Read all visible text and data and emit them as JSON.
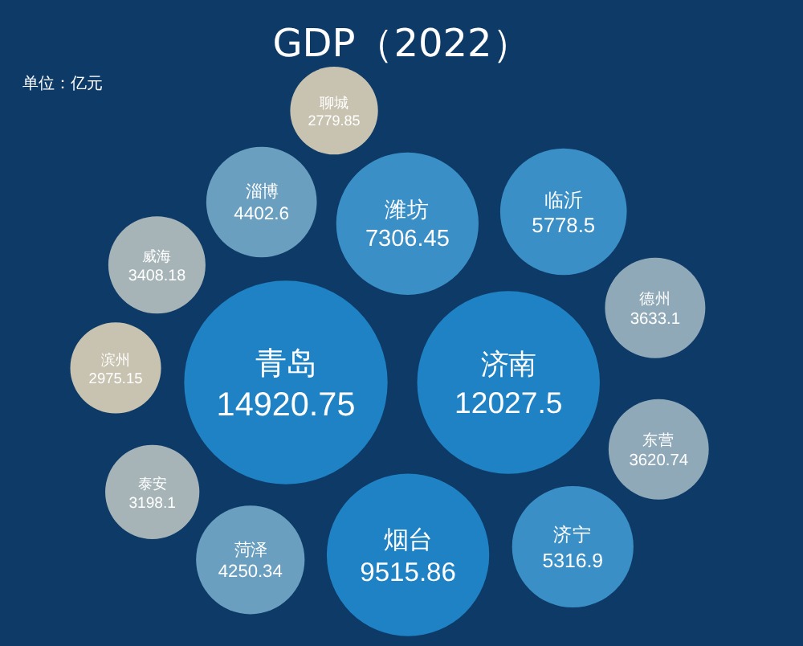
{
  "chart_data": {
    "type": "other",
    "title": "GDP（2022）",
    "subtitle": "单位：亿元",
    "categories": [
      "青岛",
      "济南",
      "烟台",
      "潍坊",
      "临沂",
      "济宁",
      "淄博",
      "菏泽",
      "德州",
      "东营",
      "威海",
      "泰安",
      "滨州",
      "聊城"
    ],
    "values": [
      14920.75,
      12027.5,
      9515.86,
      7306.45,
      5778.5,
      5316.9,
      4402.6,
      4250.34,
      3633.1,
      3620.74,
      3408.18,
      3198.1,
      2975.15,
      2779.85
    ],
    "colors": [
      "#1f82c4",
      "#1f82c4",
      "#1f82c4",
      "#3a8fc6",
      "#3a8fc6",
      "#3a8fc6",
      "#6b9fc0",
      "#6b9fc0",
      "#8fa9b8",
      "#8fa9b8",
      "#a6b4b8",
      "#a6b4b8",
      "#c8c2b0",
      "#c8c2b0"
    ],
    "data_labels": true
  }
}
